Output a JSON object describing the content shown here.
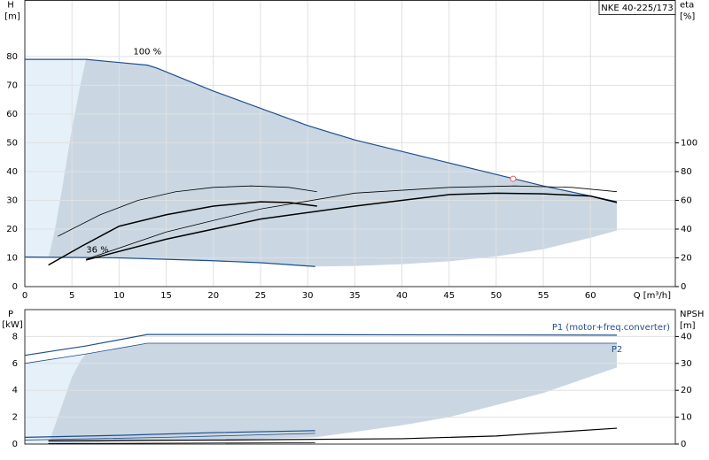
{
  "chart_data": [
    {
      "type": "line",
      "title": "NKE 40-225/173",
      "y_label": "H",
      "y_unit": "[m]",
      "y2_label": "eta",
      "y2_unit": "[%]",
      "x_label": "Q [m³/h]",
      "xlim": [
        0,
        69
      ],
      "xticks": [
        0,
        5,
        10,
        15,
        20,
        25,
        30,
        35,
        40,
        45,
        50,
        55,
        60
      ],
      "ylim": [
        0,
        99.5
      ],
      "yticks": [
        0,
        10,
        20,
        30,
        40,
        50,
        60,
        70,
        80
      ],
      "y2lim": [
        0,
        199
      ],
      "y2ticks": [
        0,
        20,
        40,
        60,
        80,
        100
      ],
      "grid": true,
      "areas": [
        {
          "color": "#e6f0f9",
          "x": [
            0,
            2.5,
            3.2,
            4,
            5,
            6,
            6.5,
            0
          ],
          "values": [
            10.3,
            10,
            20,
            35,
            55,
            72,
            79,
            79
          ]
        },
        {
          "color": "#cad7e3",
          "x": [
            2.5,
            3.2,
            4,
            5,
            6,
            6.5,
            13,
            14,
            20,
            25,
            30,
            35,
            40,
            45,
            50,
            55,
            60,
            62.8,
            62.8,
            60,
            55,
            50,
            45,
            40,
            35,
            30.8,
            25,
            20,
            10,
            2.5
          ],
          "values": [
            10,
            20,
            35,
            55,
            72,
            79,
            77,
            76,
            68,
            62,
            56,
            51,
            47,
            43,
            39,
            35,
            31.5,
            29.5,
            19.5,
            17,
            13,
            10.5,
            8.8,
            7.8,
            7.2,
            7,
            8.3,
            9,
            10,
            10
          ]
        }
      ],
      "series": [
        {
          "label": "100 %",
          "color": "#1f4e8c",
          "width": 1.2,
          "x": [
            0,
            6.5,
            13,
            14,
            20,
            25,
            30,
            35,
            40,
            45,
            50,
            55,
            60,
            62.8
          ],
          "values": [
            79,
            79,
            77,
            76,
            68,
            62,
            56,
            51,
            47,
            43,
            39,
            35,
            31.5,
            29.5
          ]
        },
        {
          "label": "36 %",
          "color": "#1f4e8c",
          "width": 1.2,
          "x": [
            0,
            10,
            20,
            25,
            30.8
          ],
          "values": [
            10.3,
            10,
            9,
            8.3,
            7
          ]
        },
        {
          "color": "#000000",
          "width": 0.8,
          "axis": "y2",
          "x": [
            3.5,
            8,
            12,
            16,
            20,
            24,
            28,
            31
          ],
          "values": [
            35,
            50,
            60,
            66,
            69,
            70,
            69,
            66
          ]
        },
        {
          "color": "#000000",
          "width": 1.5,
          "axis": "y2",
          "x": [
            2.5,
            6,
            10,
            15,
            20,
            25,
            28,
            31
          ],
          "values": [
            15,
            28,
            42,
            50,
            56,
            59,
            58.5,
            56
          ]
        },
        {
          "color": "#000000",
          "width": 0.8,
          "axis": "y2",
          "x": [
            6.5,
            15,
            25,
            35,
            45,
            52,
            58,
            62.8
          ],
          "values": [
            19,
            38,
            54,
            65,
            69,
            70,
            69,
            66
          ]
        },
        {
          "color": "#000000",
          "width": 1.5,
          "axis": "y2",
          "x": [
            6.5,
            15,
            25,
            35,
            45,
            50,
            55,
            60,
            62.8
          ],
          "values": [
            18.5,
            33,
            47,
            56,
            64,
            65,
            64.5,
            63,
            58.5
          ]
        }
      ],
      "marker": {
        "x": 51.8,
        "value": 37.5,
        "color": "#e06060"
      }
    },
    {
      "type": "line",
      "y_label": "P",
      "y_unit": "[kW]",
      "y2_label": "NPSH",
      "y2_unit": "[m]",
      "xlim": [
        0,
        69
      ],
      "ylim": [
        0,
        10
      ],
      "yticks": [
        0,
        2,
        4,
        6,
        8
      ],
      "y2lim": [
        0,
        50
      ],
      "y2ticks": [
        0,
        10,
        20,
        30,
        40
      ],
      "grid": true,
      "areas": [
        {
          "color": "#e6f0f9",
          "x": [
            0,
            2.5,
            3,
            4,
            5,
            6,
            6.5,
            0
          ],
          "values": [
            0,
            0,
            1,
            3,
            5,
            6.3,
            6.7,
            6
          ]
        },
        {
          "color": "#cad7e3",
          "x": [
            2.5,
            3,
            4,
            5,
            6,
            6.5,
            13,
            62.8,
            62.8,
            55,
            45,
            40,
            30.8,
            20,
            10
          ],
          "values": [
            0,
            1,
            3,
            5,
            6.3,
            6.7,
            7.5,
            7.5,
            5.7,
            3.8,
            2,
            1.4,
            0.5,
            0.3,
            0.2
          ]
        }
      ],
      "series": [
        {
          "label": "P1 (motor+freq.converter)",
          "color": "#1f4e8c",
          "width": 1.2,
          "x": [
            0,
            6.5,
            13,
            20,
            62.8
          ],
          "values": [
            6.6,
            7.3,
            8.15,
            8.15,
            8.1
          ]
        },
        {
          "label": "P2",
          "color": "#1f4e8c",
          "width": 0.8,
          "x": [
            0,
            6.5,
            13,
            62.8
          ],
          "values": [
            6,
            6.7,
            7.5,
            7.5
          ]
        },
        {
          "color": "#1f4e8c",
          "width": 1.2,
          "x": [
            0,
            10,
            20,
            30.8
          ],
          "values": [
            0.5,
            0.65,
            0.85,
            1
          ]
        },
        {
          "color": "#1f4e8c",
          "width": 0.8,
          "x": [
            0,
            15,
            30.8
          ],
          "values": [
            0.3,
            0.5,
            0.8
          ]
        },
        {
          "color": "#000000",
          "width": 1.2,
          "axis": "y2",
          "x": [
            2.5,
            20,
            40,
            50,
            62.8
          ],
          "values": [
            1.2,
            1.5,
            2,
            3,
            5.9
          ]
        },
        {
          "color": "#000000",
          "width": 0.8,
          "axis": "y2",
          "x": [
            2.5,
            30.8
          ],
          "values": [
            0.2,
            0.5
          ]
        }
      ]
    }
  ]
}
